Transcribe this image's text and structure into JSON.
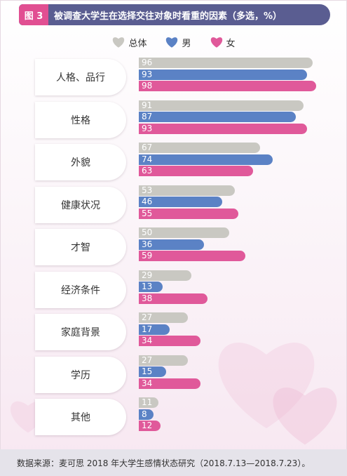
{
  "header": {
    "figure_label": "图 3",
    "title": "被调查大学生在选择交往对象时看重的因素（多选，%）"
  },
  "colors": {
    "header_bg": "#5a5d91",
    "tag_bg": "#e14f92",
    "overall": "#c9c8c2",
    "male": "#5b82c5",
    "female": "#e0599a"
  },
  "legend": [
    {
      "label": "总体",
      "color": "#c9c8c2"
    },
    {
      "label": "男",
      "color": "#5b82c5"
    },
    {
      "label": "女",
      "color": "#e0599a"
    }
  ],
  "chart_data": {
    "type": "bar",
    "orientation": "horizontal",
    "categories": [
      "人格、品行",
      "性格",
      "外貌",
      "健康状况",
      "才智",
      "经济条件",
      "家庭背景",
      "学历",
      "其他"
    ],
    "series": [
      {
        "name": "总体",
        "values": [
          96,
          91,
          67,
          53,
          50,
          29,
          27,
          27,
          11
        ]
      },
      {
        "name": "男",
        "values": [
          93,
          87,
          74,
          46,
          36,
          13,
          17,
          15,
          8
        ]
      },
      {
        "name": "女",
        "values": [
          98,
          93,
          63,
          55,
          59,
          38,
          34,
          34,
          12
        ]
      }
    ],
    "unit": "%",
    "legend_position": "top-center"
  },
  "footer": {
    "source": "数据来源：麦可思 2018 年大学生感情状态研究（2018.7.13—2018.7.23）。"
  }
}
